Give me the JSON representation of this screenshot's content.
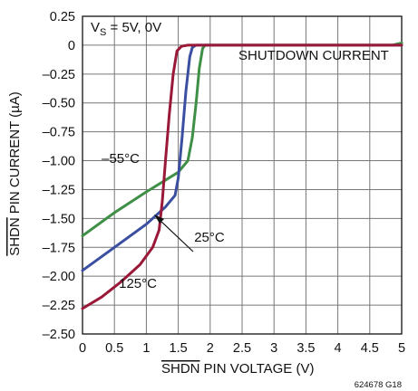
{
  "chart_data": {
    "type": "line",
    "title": "",
    "xlabel": "PIN VOLTAGE (V)",
    "xlabel_overline": "SHDN",
    "ylabel": "PIN CURRENT (µA)",
    "ylabel_overline": "SHDN",
    "xlim": [
      0,
      5
    ],
    "ylim": [
      -2.5,
      0.25
    ],
    "x_ticks": [
      "0",
      "0.5",
      "1",
      "1.5",
      "2",
      "2.5",
      "3",
      "3.5",
      "4",
      "4.5",
      "5"
    ],
    "y_ticks": [
      "0.25",
      "0",
      "–0.25",
      "–0.50",
      "–0.75",
      "–1.00",
      "–1.25",
      "–1.50",
      "–1.75",
      "–2.00",
      "–2.25",
      "–2.50"
    ],
    "grid": true,
    "condition": {
      "main": "V",
      "sub": "S",
      "rest": " = 5V, 0V"
    },
    "annotation": "SHUTDOWN CURRENT",
    "footnote": "624678 G18",
    "series": [
      {
        "name": "–55°C",
        "color": "#3f8f47",
        "points": [
          [
            0,
            -1.65
          ],
          [
            0.5,
            -1.45
          ],
          [
            1.0,
            -1.27
          ],
          [
            1.5,
            -1.1
          ],
          [
            1.65,
            -1.0
          ],
          [
            1.72,
            -0.8
          ],
          [
            1.78,
            -0.5
          ],
          [
            1.83,
            -0.2
          ],
          [
            1.88,
            -0.03
          ],
          [
            1.92,
            0.0
          ],
          [
            2.5,
            0.0
          ],
          [
            4.85,
            0.0
          ],
          [
            5.0,
            0.02
          ]
        ]
      },
      {
        "name": "25°C",
        "color": "#3b4fa0",
        "points": [
          [
            0,
            -1.95
          ],
          [
            0.5,
            -1.75
          ],
          [
            1.0,
            -1.55
          ],
          [
            1.3,
            -1.4
          ],
          [
            1.45,
            -1.3
          ],
          [
            1.5,
            -1.15
          ],
          [
            1.56,
            -0.8
          ],
          [
            1.62,
            -0.4
          ],
          [
            1.68,
            -0.1
          ],
          [
            1.72,
            -0.02
          ],
          [
            1.78,
            0.0
          ],
          [
            5.0,
            0.0
          ]
        ]
      },
      {
        "name": "125°C",
        "color": "#9a1838",
        "points": [
          [
            0,
            -2.28
          ],
          [
            0.3,
            -2.18
          ],
          [
            0.6,
            -2.05
          ],
          [
            0.9,
            -1.9
          ],
          [
            1.1,
            -1.75
          ],
          [
            1.2,
            -1.6
          ],
          [
            1.25,
            -1.35
          ],
          [
            1.3,
            -1.0
          ],
          [
            1.36,
            -0.6
          ],
          [
            1.42,
            -0.25
          ],
          [
            1.48,
            -0.05
          ],
          [
            1.55,
            -0.01
          ],
          [
            1.65,
            0.0
          ],
          [
            5.0,
            0.0
          ]
        ]
      }
    ],
    "curve_labels": [
      {
        "text": "–55°C",
        "x": 0.3,
        "y": -1.02
      },
      {
        "text": "25°C",
        "x": 1.75,
        "y": -1.7
      },
      {
        "text": "125°C",
        "x": 0.57,
        "y": -2.1
      }
    ]
  }
}
